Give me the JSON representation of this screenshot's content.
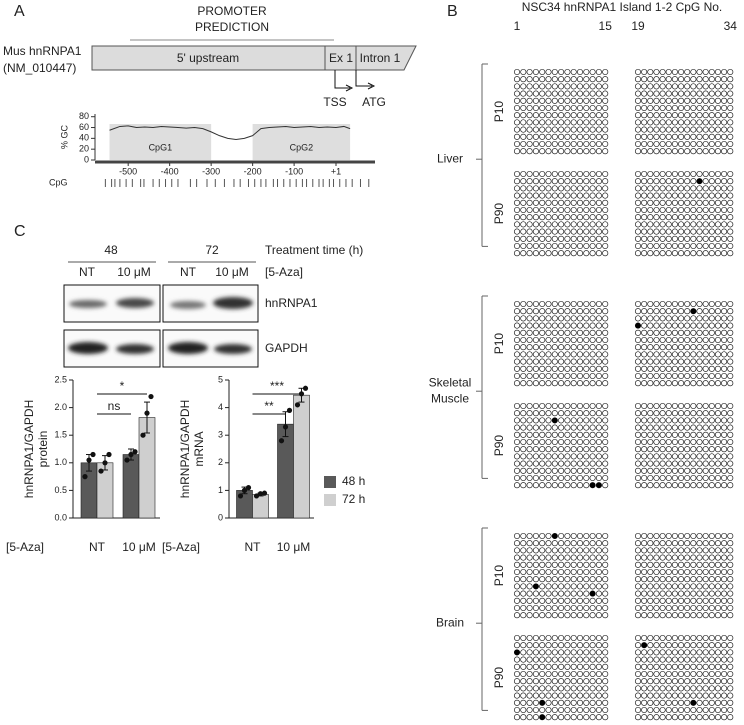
{
  "panel_a": {
    "letter": "A",
    "promoter_prediction": [
      "PROMOTER",
      "PREDICTION"
    ],
    "gene": [
      "Mus hnRNPA1",
      "(NM_010447)"
    ],
    "segments": [
      "5' upstream",
      "Ex 1",
      "Intron 1"
    ],
    "markers": [
      "TSS",
      "ATG"
    ]
  },
  "panel_b": {
    "letter": "B",
    "title": "NSC34 hnRNPA1 Island 1-2 CpG No.",
    "blocks": [
      {
        "start": 1,
        "end": 15
      },
      {
        "start": 19,
        "end": 34
      }
    ],
    "rows": 12,
    "tissues": [
      {
        "name": [
          "Liver"
        ],
        "samples": [
          {
            "age": "P10",
            "filled": [
              [],
              []
            ]
          },
          {
            "age": "P90",
            "filled": [
              [],
              [
                [
                  1,
                  10
                ]
              ]
            ]
          }
        ]
      },
      {
        "name": [
          "Skeletal",
          "Muscle"
        ],
        "samples": [
          {
            "age": "P10",
            "filled": [
              [],
              [
                [
                  1,
                  9
                ],
                [
                  3,
                  0
                ]
              ]
            ]
          },
          {
            "age": "P90",
            "filled": [
              [
                [
                  2,
                  6
                ],
                [
                  11,
                  12
                ],
                [
                  11,
                  13
                ]
              ],
              []
            ]
          }
        ]
      },
      {
        "name": [
          "Brain"
        ],
        "samples": [
          {
            "age": "P10",
            "filled": [
              [
                [
                  0,
                  6
                ],
                [
                  7,
                  3
                ],
                [
                  8,
                  12
                ]
              ],
              []
            ]
          },
          {
            "age": "P90",
            "filled": [
              [
                [
                  2,
                  0
                ],
                [
                  9,
                  4
                ],
                [
                  11,
                  4
                ]
              ],
              [
                [
                  1,
                  1
                ],
                [
                  9,
                  9
                ]
              ]
            ]
          }
        ]
      }
    ]
  },
  "panel_c": {
    "letter": "C",
    "times": [
      "48",
      "72"
    ],
    "time_label": "Treatment time (h)",
    "doses": [
      "NT",
      "10 μM",
      "NT",
      "10 μM"
    ],
    "dose_label": "[5-Aza]",
    "blots": [
      "hnRNPA1",
      "GAPDH"
    ]
  },
  "chart_data": [
    {
      "type": "line",
      "ylabel": "% GC",
      "color": "#333333",
      "x": [
        -545,
        -520,
        -500,
        -480,
        -460,
        -440,
        -420,
        -400,
        -380,
        -360,
        -340,
        -320,
        -300,
        -280,
        -260,
        -240,
        -220,
        -200,
        -180,
        -160,
        -140,
        -120,
        -100,
        -80,
        -60,
        -40,
        -20,
        1,
        20,
        35
      ],
      "values": [
        55,
        62,
        63,
        60,
        61,
        60,
        62,
        61,
        60,
        59,
        60,
        58,
        52,
        45,
        40,
        38,
        40,
        45,
        58,
        60,
        61,
        62,
        60,
        61,
        62,
        60,
        61,
        60,
        62,
        58
      ],
      "xlim": [
        -580,
        95
      ],
      "xticks": [
        -500,
        -400,
        -300,
        -200,
        -100,
        {
          "value": 1,
          "label": "+1"
        }
      ],
      "ylim": [
        0,
        85
      ],
      "yticks": [
        0,
        20,
        40,
        60,
        80
      ],
      "islands": [
        {
          "label": "CpG1",
          "start": -545,
          "end": -300
        },
        {
          "label": "CpG2",
          "start": -200,
          "end": 35
        }
      ],
      "cpg_label": "CpG",
      "cpg_sites": [
        -555,
        -540,
        -532,
        -520,
        -505,
        -490,
        -470,
        -462,
        -440,
        -425,
        -410,
        -395,
        -380,
        -350,
        -335,
        -310,
        -290,
        -268,
        -245,
        -230,
        -210,
        -195,
        -180,
        -168,
        -150,
        -140,
        -125,
        -110,
        -95,
        -80,
        -70,
        -55,
        -40,
        -30,
        -15,
        -5,
        10,
        25,
        40,
        60,
        80
      ]
    },
    {
      "type": "bar",
      "ylabel": [
        "hnRNPA1/GAPDH",
        "protein"
      ],
      "x_prefix": "[5-Aza]",
      "categories": [
        "NT",
        "10 μM"
      ],
      "series": [
        {
          "name": "48 h",
          "color": "#595959",
          "values": [
            1.0,
            1.15
          ],
          "errors": [
            0.15,
            0.1
          ],
          "points": [
            [
              0.75,
              1.05,
              1.15
            ],
            [
              1.05,
              1.15,
              1.2
            ]
          ]
        },
        {
          "name": "72 h",
          "color": "#cfcfcf",
          "values": [
            1.0,
            1.82
          ],
          "errors": [
            0.13,
            0.28
          ],
          "points": [
            [
              0.85,
              1.0,
              1.15
            ],
            [
              1.5,
              1.9,
              2.2
            ]
          ]
        }
      ],
      "ylim": [
        0,
        2.5
      ],
      "yticks": [
        {
          "value": 0,
          "label": "0.0"
        },
        0.5,
        {
          "value": 1,
          "label": "1.0"
        },
        1.5,
        {
          "value": 2,
          "label": "2.0"
        },
        2.5
      ],
      "annotations": [
        {
          "text": "ns",
          "from": {
            "category": "NT"
          },
          "to": {
            "category": "10 μM",
            "series": "48 h"
          }
        },
        {
          "text": "*",
          "from": {
            "category": "NT"
          },
          "to": {
            "category": "10 μM",
            "series": "72 h"
          }
        }
      ],
      "legend": false
    },
    {
      "type": "bar",
      "ylabel": [
        "hnRNPA1/GAPDH",
        "mRNA"
      ],
      "x_prefix": "[5-Aza]",
      "categories": [
        "NT",
        "10 μM"
      ],
      "series": [
        {
          "name": "48 h",
          "color": "#595959",
          "values": [
            1.0,
            3.4
          ],
          "errors": [
            0.12,
            0.45
          ],
          "points": [
            [
              0.8,
              1.0,
              1.1
            ],
            [
              2.8,
              3.3,
              3.9
            ]
          ]
        },
        {
          "name": "72 h",
          "color": "#cfcfcf",
          "values": [
            0.85,
            4.45
          ],
          "errors": [
            0.05,
            0.25
          ],
          "points": [
            [
              0.8,
              0.88,
              0.9
            ],
            [
              4.1,
              4.5,
              4.7
            ]
          ]
        }
      ],
      "ylim": [
        0,
        5
      ],
      "yticks": [
        0,
        1,
        2,
        3,
        4,
        5
      ],
      "annotations": [
        {
          "text": "**",
          "from": {
            "category": "NT"
          },
          "to": {
            "category": "10 μM",
            "series": "48 h"
          }
        },
        {
          "text": "***",
          "from": {
            "category": "NT"
          },
          "to": {
            "category": "10 μM",
            "series": "72 h"
          }
        }
      ],
      "legend": true,
      "legend_position": "right"
    }
  ]
}
